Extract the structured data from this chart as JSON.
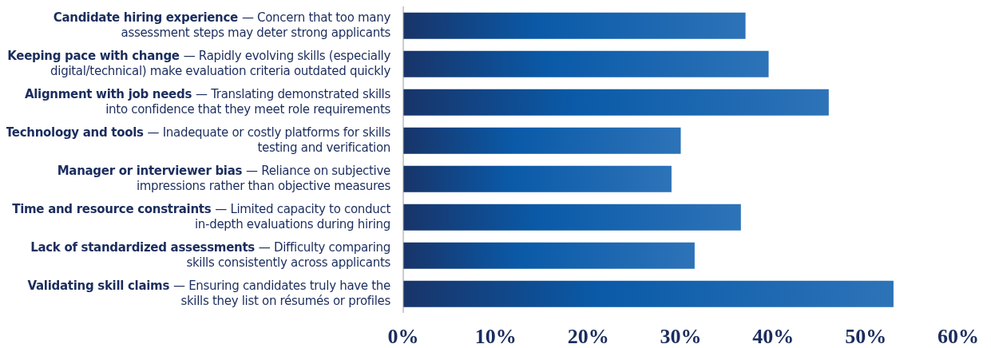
{
  "chart_data": {
    "type": "bar",
    "orientation": "horizontal",
    "categories": [
      "Candidate hiring experience — Concern that too many assessment steps may deter strong applicants",
      "Keeping pace with change — Rapidly evolving skills (especially digital/technical) make evaluation criteria outdated quickly",
      "Alignment with job needs — Translating demonstrated skills into confidence that they meet role requirements",
      "Technology and tools — Inadequate or costly platforms for skills testing and verification",
      "Manager or interviewer bias — Reliance on subjective impressions rather than objective measures",
      "Time and resource constraints — Limited capacity to conduct in-depth evaluations during hiring",
      "Lack of standardized assessments — Difficulty comparing skills consistently across applicants",
      "Validating skill claims — Ensuring candidates truly have the skills they list on résumés or profiles"
    ],
    "values": [
      37,
      39.5,
      46,
      30,
      29,
      36.5,
      31.5,
      53
    ],
    "color": "#0a5aa8",
    "xlim": [
      0,
      60
    ],
    "xticks": [
      {
        "value": 0,
        "label": "0%"
      },
      {
        "value": 10,
        "label": "10%"
      },
      {
        "value": 20,
        "label": "20%"
      },
      {
        "value": 30,
        "label": "30%"
      },
      {
        "value": 40,
        "label": "40%"
      },
      {
        "value": 50,
        "label": "50%"
      },
      {
        "value": 60,
        "label": "60%"
      }
    ],
    "grid": false,
    "legend": false
  }
}
